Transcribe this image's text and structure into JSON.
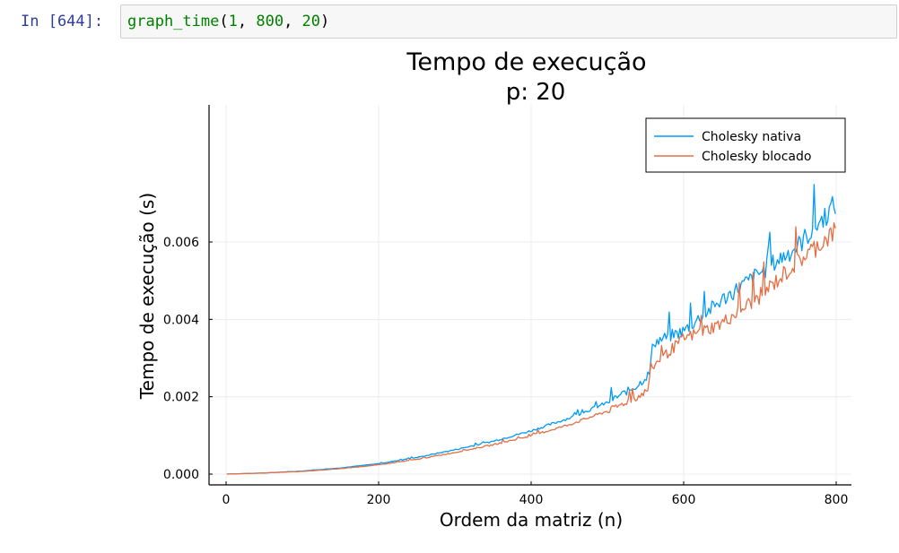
{
  "cell": {
    "prompt": "In [644]:",
    "code_fn": "graph_time",
    "code_open": "(",
    "arg1": "1",
    "arg2": "800",
    "arg3": "20",
    "code_close": ")",
    "sep": ", "
  },
  "chart_data": {
    "type": "line",
    "title": "Tempo de execução",
    "subtitle": "p: 20",
    "xlabel": "Ordem da matriz (n)",
    "ylabel": "Tempo de execução (s)",
    "xlim": [
      -20,
      820
    ],
    "ylim": [
      -0.0002,
      0.0075
    ],
    "x_ticks": [
      0,
      200,
      400,
      600,
      800
    ],
    "x_tick_labels": [
      "0",
      "200",
      "400",
      "600",
      "800"
    ],
    "y_ticks": [
      0,
      0.002,
      0.004,
      0.006
    ],
    "y_tick_labels": [
      "0.000",
      "0.002",
      "0.004",
      "0.006"
    ],
    "grid": true,
    "legend_position": "top-right",
    "x": [
      1,
      50,
      100,
      150,
      200,
      250,
      300,
      350,
      400,
      450,
      500,
      540,
      555,
      560,
      600,
      650,
      700,
      750,
      800
    ],
    "series": [
      {
        "name": "Cholesky nativa",
        "color": "#009af9",
        "values": [
          0.0,
          3e-05,
          8e-05,
          0.00016,
          0.00027,
          0.00043,
          0.00063,
          0.00085,
          0.00112,
          0.00145,
          0.00185,
          0.0023,
          0.0026,
          0.0034,
          0.0037,
          0.0045,
          0.0052,
          0.0059,
          0.007
        ]
      },
      {
        "name": "Cholesky blocado",
        "color": "#e26f46",
        "values": [
          0.0,
          3e-05,
          7e-05,
          0.00014,
          0.00024,
          0.00038,
          0.00056,
          0.00076,
          0.00099,
          0.00128,
          0.00163,
          0.002,
          0.0022,
          0.0028,
          0.0035,
          0.0039,
          0.0046,
          0.0055,
          0.0063
        ]
      }
    ]
  }
}
